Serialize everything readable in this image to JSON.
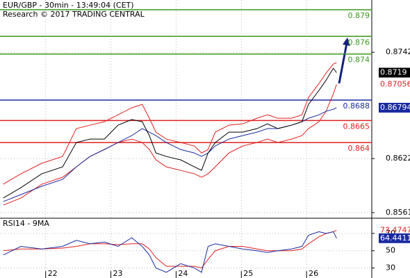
{
  "chart_data": [
    {
      "type": "line",
      "title": "EUR/GBP - 30min - 13:49:04 (CET)",
      "subtitle": "Research © 2017 TRADING CENTRAL",
      "x": [
        21.35,
        21.62,
        21.94,
        22.26,
        22.47,
        22.68,
        22.9,
        23.11,
        23.32,
        23.48,
        23.59,
        23.69,
        23.85,
        24.07,
        24.28,
        24.39,
        24.49,
        24.6,
        24.81,
        25.02,
        25.24,
        25.4,
        25.56,
        25.77,
        25.93,
        26.03,
        26.19,
        26.3,
        26.41,
        26.46
      ],
      "series": [
        {
          "color": "#e02020",
          "values": [
            0.8593,
            0.86048,
            0.86166,
            0.86244,
            0.86558,
            0.86597,
            0.86636,
            0.86714,
            0.86793,
            0.86832,
            0.86675,
            0.86518,
            0.8644,
            0.86401,
            0.86362,
            0.86283,
            0.86322,
            0.86518,
            0.86597,
            0.86612,
            0.86675,
            0.86714,
            0.86675,
            0.86675,
            0.86714,
            0.8691,
            0.87067,
            0.87185,
            0.87287,
            0.87302
          ]
        },
        {
          "color": "#e02020",
          "end_label": "text",
          "values": [
            0.85695,
            0.85774,
            0.8593,
            0.86009,
            0.86126,
            0.86244,
            0.86322,
            0.86401,
            0.8644,
            0.86401,
            0.86322,
            0.86205,
            0.86126,
            0.86087,
            0.86048,
            0.86009,
            0.86048,
            0.86126,
            0.86283,
            0.86362,
            0.86401,
            0.8644,
            0.86401,
            0.8644,
            0.86479,
            0.86558,
            0.86636,
            0.86754,
            0.8695,
            0.87056
          ]
        },
        {
          "color": "#1a2aa0",
          "end_label": "box",
          "values": [
            0.85734,
            0.85813,
            0.85907,
            0.85985,
            0.86126,
            0.86244,
            0.86322,
            0.86401,
            0.86479,
            0.86558,
            0.86518,
            0.86479,
            0.86401,
            0.86322,
            0.86283,
            0.86244,
            0.86283,
            0.86362,
            0.8644,
            0.86479,
            0.86518,
            0.86558,
            0.86558,
            0.86597,
            0.86636,
            0.86675,
            0.86714,
            0.86754,
            0.86777,
            0.86794
          ]
        },
        {
          "color": "#000000",
          "end_label": "box",
          "values": [
            0.85774,
            0.85891,
            0.86048,
            0.86126,
            0.86401,
            0.8644,
            0.8644,
            0.86597,
            0.8666,
            0.86636,
            0.86479,
            0.86283,
            0.86244,
            0.86205,
            0.86126,
            0.86087,
            0.86283,
            0.86401,
            0.86518,
            0.86518,
            0.86558,
            0.86612,
            0.86558,
            0.86597,
            0.86636,
            0.86832,
            0.86989,
            0.87106,
            0.87239,
            0.8719
          ]
        }
      ],
      "levels": [
        {
          "value": 0.879,
          "color": "#3a9a1a"
        },
        {
          "value": 0.876,
          "color": "#3a9a1a"
        },
        {
          "value": 0.874,
          "color": "#3a9a1a"
        },
        {
          "value": 0.8688,
          "color": "#1a2aa0"
        },
        {
          "value": 0.8665,
          "color": "#e02020"
        },
        {
          "value": 0.864,
          "color": "#e02020"
        }
      ],
      "xlim": [
        21.3,
        27.0
      ],
      "xticks": [
        22,
        23,
        24,
        25,
        26
      ],
      "ylim": [
        0.85554,
        0.8801
      ],
      "yticks": [
        0.8742,
        0.8622,
        0.8561
      ],
      "grid": true
    },
    {
      "type": "line",
      "title": "RSI14 - 9MA",
      "x": [
        21.35,
        21.62,
        21.94,
        22.26,
        22.47,
        22.68,
        22.9,
        23.11,
        23.32,
        23.48,
        23.59,
        23.69,
        23.85,
        24.07,
        24.28,
        24.39,
        24.49,
        24.6,
        24.81,
        25.02,
        25.24,
        25.4,
        25.56,
        25.77,
        25.93,
        26.03,
        26.19,
        26.3,
        26.41,
        26.46
      ],
      "series": [
        {
          "color": "#e02020",
          "end_label": "text",
          "values": [
            50,
            52,
            52,
            53,
            55,
            58,
            58,
            57,
            58,
            58,
            52,
            42,
            32,
            32,
            32,
            30,
            40,
            50,
            55,
            55,
            52,
            50,
            50,
            50,
            52,
            58,
            66,
            70,
            72,
            73.4747
          ]
        },
        {
          "color": "#1a2aa0",
          "end_label": "box",
          "values": [
            45,
            55,
            52,
            55,
            62,
            58,
            60,
            55,
            65,
            55,
            45,
            30,
            25,
            35,
            30,
            25,
            55,
            58,
            55,
            52,
            50,
            48,
            50,
            52,
            55,
            68,
            72,
            70,
            72,
            64.4411
          ]
        }
      ],
      "xlim": [
        21.3,
        27.0
      ],
      "xticks": [
        22,
        23,
        24,
        25,
        26
      ],
      "ylim": [
        20,
        86
      ],
      "yticks": [
        70,
        50,
        30
      ],
      "grid": true
    }
  ]
}
